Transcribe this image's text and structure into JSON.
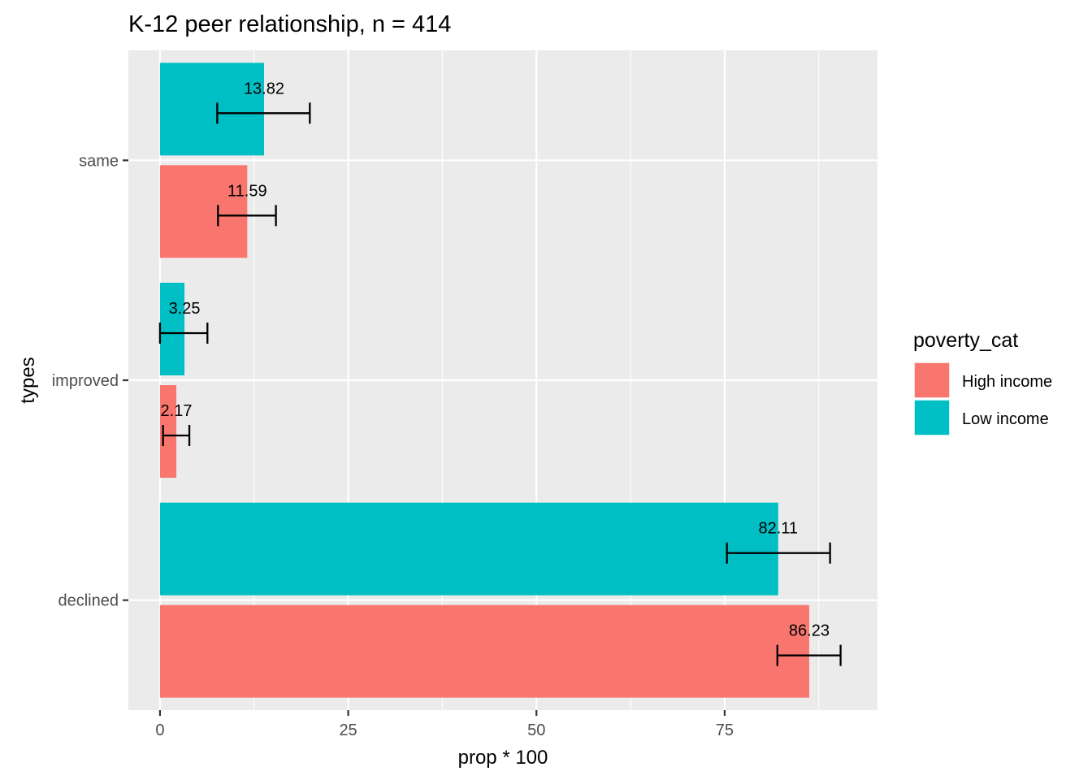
{
  "chart_data": {
    "type": "bar",
    "orientation": "horizontal",
    "title": "K-12  peer relationship, n = 414",
    "xlabel": "prop * 100",
    "ylabel": "types",
    "categories": [
      "declined",
      "improved",
      "same"
    ],
    "xlim": [
      -4.2,
      95.3
    ],
    "xticks": [
      0,
      25,
      50,
      75
    ],
    "grid": true,
    "legend": {
      "title": "poverty_cat",
      "position": "right"
    },
    "series": [
      {
        "name": "High income",
        "color": "#F8766D",
        "values": [
          86.23,
          2.17,
          11.59
        ],
        "labels": [
          "86.23",
          "2.17",
          "11.59"
        ],
        "error_low": [
          82.0,
          0.4,
          7.7
        ],
        "error_high": [
          90.4,
          3.9,
          15.4
        ]
      },
      {
        "name": "Low income",
        "color": "#00BFC4",
        "values": [
          82.11,
          3.25,
          13.82
        ],
        "labels": [
          "82.11",
          "3.25",
          "13.82"
        ],
        "error_low": [
          75.3,
          0.0,
          7.6
        ],
        "error_high": [
          89.0,
          6.3,
          19.9
        ]
      }
    ]
  }
}
